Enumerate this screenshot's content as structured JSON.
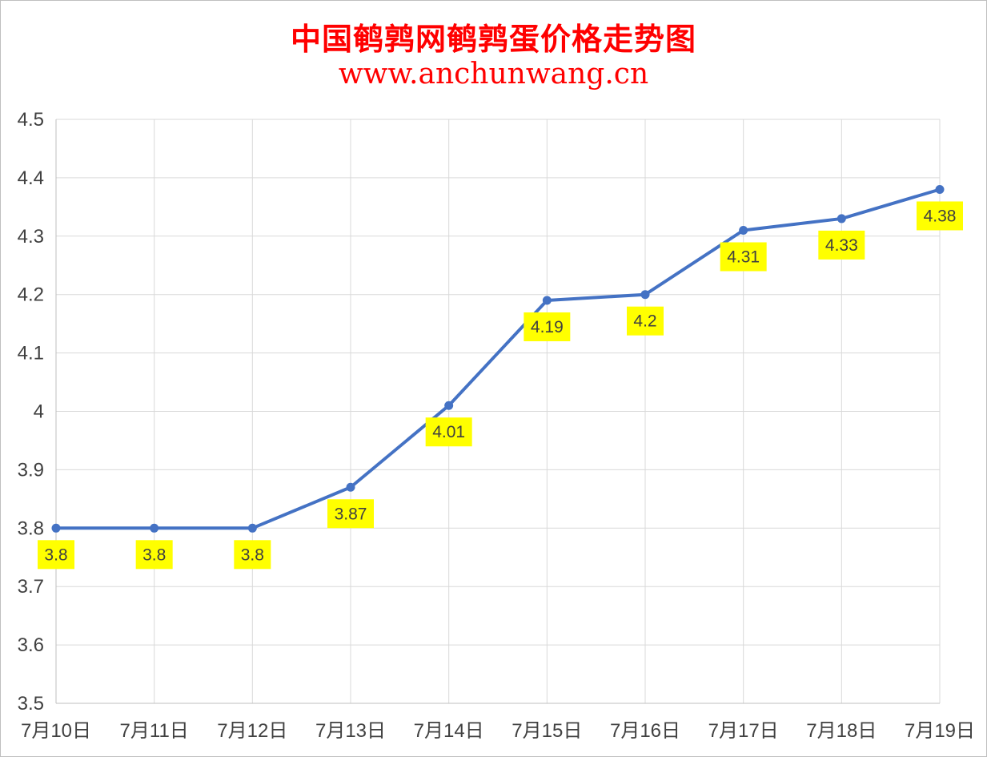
{
  "colors": {
    "title": "#ff0000",
    "line": "#4472c4",
    "label_bg": "#ffff00",
    "grid": "#d9d9d9",
    "text": "#404040"
  },
  "chart_data": {
    "type": "line",
    "title": "中国鹌鹑网鹌鹑蛋价格走势图",
    "subtitle": "www.anchunwang.cn",
    "xlabel": "",
    "ylabel": "",
    "categories": [
      "7月10日",
      "7月11日",
      "7月12日",
      "7月13日",
      "7月14日",
      "7月15日",
      "7月16日",
      "7月17日",
      "7月18日",
      "7月19日"
    ],
    "series": [
      {
        "values": [
          3.8,
          3.8,
          3.8,
          3.87,
          4.01,
          4.19,
          4.2,
          4.31,
          4.33,
          4.38
        ]
      }
    ],
    "data_labels": [
      "3.8",
      "3.8",
      "3.8",
      "3.87",
      "4.01",
      "4.19",
      "4.2",
      "4.31",
      "4.33",
      "4.38"
    ],
    "ylim": [
      3.5,
      4.5
    ],
    "yticks": [
      3.5,
      3.6,
      3.7,
      3.8,
      3.9,
      4,
      4.1,
      4.2,
      4.3,
      4.4,
      4.5
    ],
    "ytick_labels": [
      "3.5",
      "3.6",
      "3.7",
      "3.8",
      "3.9",
      "4",
      "4.1",
      "4.2",
      "4.3",
      "4.4",
      "4.5"
    ],
    "grid": true,
    "legend": "none"
  }
}
